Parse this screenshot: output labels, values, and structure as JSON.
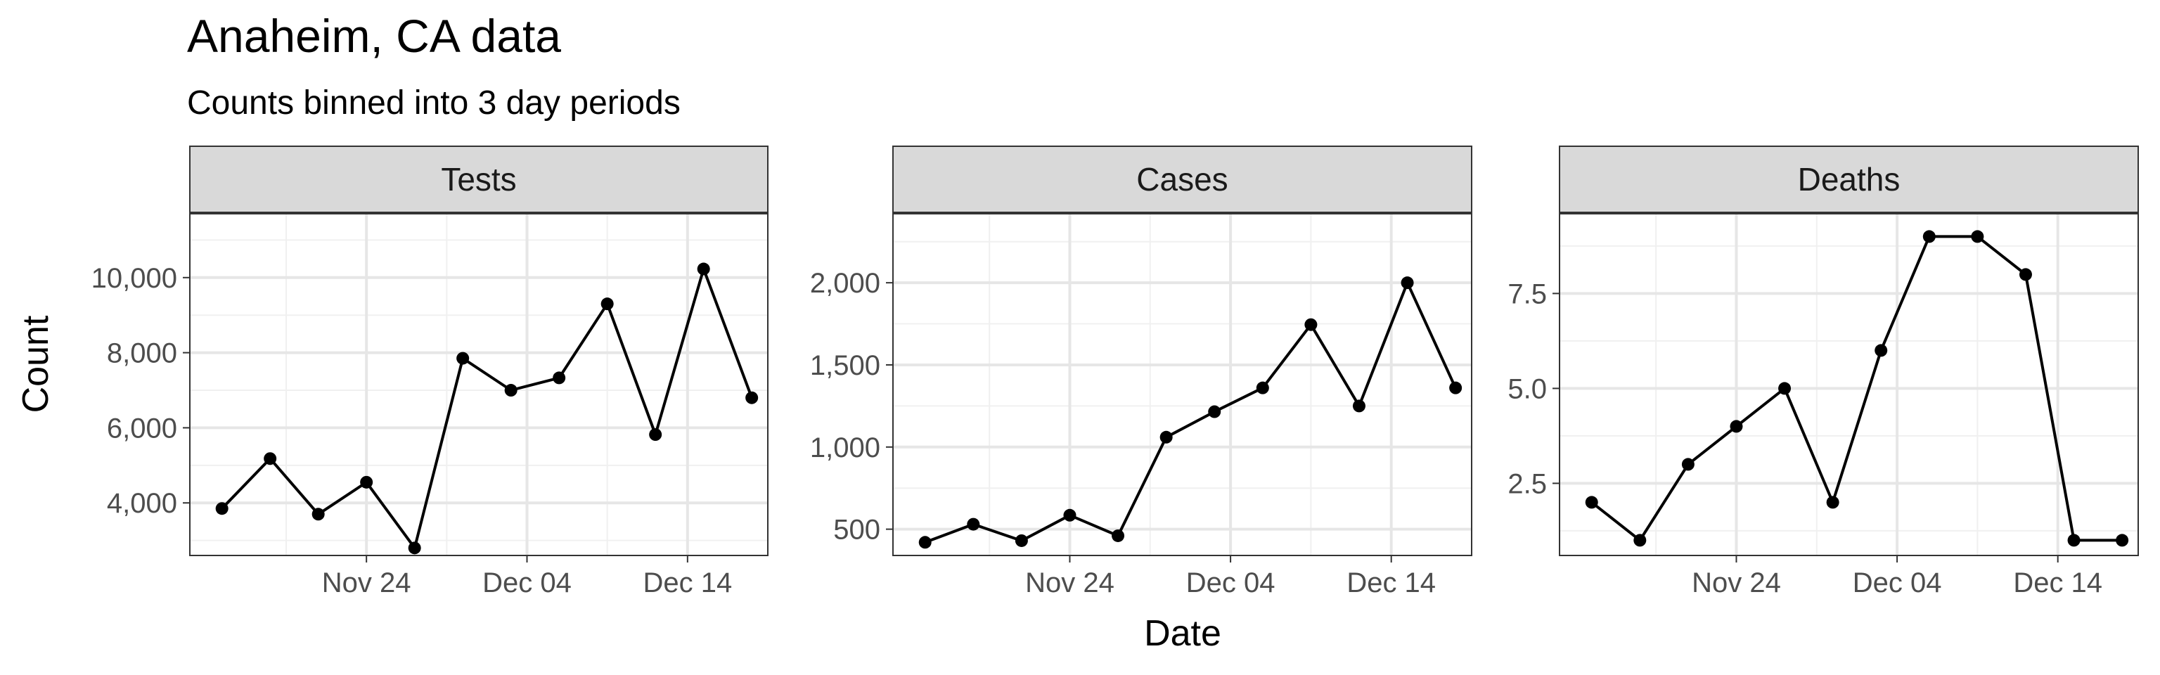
{
  "chart_data": {
    "type": "line",
    "title": "Anaheim, CA data",
    "subtitle": "Counts binned into 3 day periods",
    "xlabel": "Date",
    "ylabel": "Count",
    "x": [
      "2020-11-15",
      "2020-11-18",
      "2020-11-21",
      "2020-11-24",
      "2020-11-27",
      "2020-11-30",
      "2020-12-03",
      "2020-12-06",
      "2020-12-09",
      "2020-12-12",
      "2020-12-15",
      "2020-12-18"
    ],
    "x_tick_labels": [
      "Nov 24",
      "Dec 04",
      "Dec 14"
    ],
    "x_ticks": [
      "2020-11-24",
      "2020-12-04",
      "2020-12-14"
    ],
    "xlim": [
      "2020-11-13",
      "2020-12-19"
    ],
    "grid": true,
    "panels": [
      {
        "name": "Tests",
        "values": [
          3850,
          5180,
          3700,
          4550,
          2800,
          7850,
          7000,
          7330,
          9300,
          5820,
          10230,
          6800
        ],
        "ylim": [
          2600,
          11700
        ],
        "y_ticks": [
          4000,
          6000,
          8000,
          10000
        ],
        "y_tick_labels": [
          "4,000",
          "6,000",
          "8,000",
          "10,000"
        ]
      },
      {
        "name": "Cases",
        "values": [
          420,
          530,
          430,
          585,
          460,
          1060,
          1215,
          1360,
          1745,
          1250,
          2000,
          1360
        ],
        "ylim": [
          340,
          2420
        ],
        "y_ticks": [
          500,
          1000,
          1500,
          2000
        ],
        "y_tick_labels": [
          "500",
          "1,000",
          "1,500",
          "2,000"
        ]
      },
      {
        "name": "Deaths",
        "values": [
          2,
          1,
          3,
          4,
          5,
          2,
          6,
          9,
          9,
          8,
          1,
          1
        ],
        "ylim": [
          0.6,
          9.6
        ],
        "y_ticks": [
          2.5,
          5.0,
          7.5
        ],
        "y_tick_labels": [
          "2.5",
          "5.0",
          "7.5"
        ]
      }
    ]
  }
}
